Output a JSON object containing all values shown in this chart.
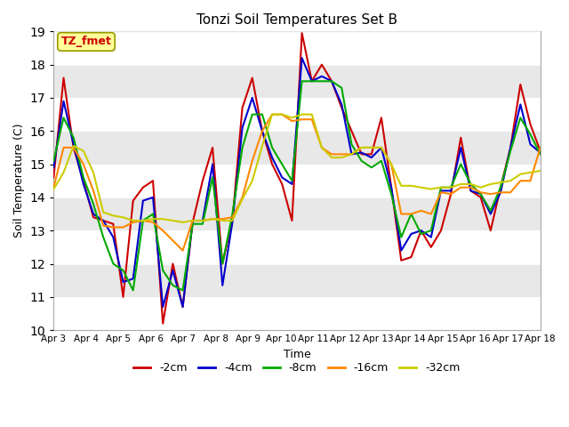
{
  "title": "Tonzi Soil Temperatures Set B",
  "xlabel": "Time",
  "ylabel": "Soil Temperature (C)",
  "ylim": [
    10.0,
    19.0
  ],
  "yticks": [
    10.0,
    11.0,
    12.0,
    13.0,
    14.0,
    15.0,
    16.0,
    17.0,
    18.0,
    19.0
  ],
  "xtick_labels": [
    "Apr 3",
    "Apr 4",
    "Apr 5",
    "Apr 6",
    "Apr 7",
    "Apr 8",
    "Apr 9",
    "Apr 10",
    "Apr 11",
    "Apr 12",
    "Apr 13",
    "Apr 14",
    "Apr 15",
    "Apr 16",
    "Apr 17",
    "Apr 18"
  ],
  "annotation_text": "TZ_fmet",
  "annotation_color": "#cc0000",
  "annotation_bg": "#ffff99",
  "fig_bg": "#ffffff",
  "plot_bg_colors": [
    "#ffffff",
    "#e8e8e8"
  ],
  "lines": {
    "-2cm": {
      "color": "#cc0000",
      "lw": 1.5
    },
    "-4cm": {
      "color": "#0000cc",
      "lw": 1.5
    },
    "-8cm": {
      "color": "#00aa00",
      "lw": 1.5
    },
    "-16cm": {
      "color": "#ff8800",
      "lw": 1.5
    },
    "-32cm": {
      "color": "#cccc00",
      "lw": 1.5
    }
  },
  "data": {
    "-2cm": [
      14.6,
      17.6,
      15.5,
      14.5,
      13.4,
      13.3,
      13.2,
      11.0,
      13.9,
      14.3,
      14.5,
      10.2,
      12.0,
      10.7,
      13.25,
      14.5,
      15.5,
      12.0,
      13.3,
      16.7,
      17.6,
      16.0,
      15.0,
      14.4,
      13.3,
      18.95,
      17.5,
      18.0,
      17.5,
      16.7,
      16.0,
      15.3,
      15.3,
      16.4,
      14.3,
      12.1,
      12.2,
      13.0,
      12.5,
      13.0,
      14.1,
      15.8,
      14.2,
      14.0,
      13.0,
      14.3,
      15.5,
      17.4,
      16.2,
      15.4
    ],
    "-4cm": [
      14.9,
      16.9,
      15.6,
      14.4,
      13.5,
      13.3,
      12.8,
      11.45,
      11.55,
      13.9,
      14.0,
      10.7,
      11.8,
      10.7,
      13.3,
      13.3,
      15.0,
      11.35,
      13.25,
      16.1,
      17.0,
      16.0,
      15.2,
      14.6,
      14.4,
      18.2,
      17.5,
      17.65,
      17.5,
      16.8,
      15.3,
      15.35,
      15.2,
      15.5,
      14.3,
      12.4,
      12.9,
      13.0,
      12.8,
      14.2,
      14.2,
      15.5,
      14.2,
      14.1,
      13.5,
      14.15,
      15.5,
      16.8,
      15.6,
      15.35
    ],
    "-8cm": [
      15.1,
      16.4,
      15.8,
      14.6,
      13.8,
      12.8,
      12.0,
      11.8,
      11.2,
      13.3,
      13.5,
      11.8,
      11.35,
      11.2,
      13.2,
      13.2,
      14.6,
      12.0,
      13.5,
      15.5,
      16.5,
      16.5,
      15.5,
      15.0,
      14.5,
      17.5,
      17.5,
      17.5,
      17.5,
      17.3,
      15.6,
      15.1,
      14.9,
      15.1,
      14.1,
      12.8,
      13.5,
      12.9,
      13.0,
      14.3,
      14.3,
      15.0,
      14.4,
      14.1,
      13.6,
      14.3,
      15.4,
      16.4,
      15.9,
      15.3
    ],
    "-16cm": [
      14.3,
      15.5,
      15.5,
      15.0,
      14.2,
      13.15,
      13.1,
      13.1,
      13.25,
      13.3,
      13.25,
      13.0,
      12.7,
      12.4,
      13.3,
      13.3,
      13.35,
      13.35,
      13.4,
      14.0,
      15.1,
      16.0,
      16.5,
      16.5,
      16.3,
      16.35,
      16.35,
      15.5,
      15.3,
      15.3,
      15.3,
      15.5,
      15.5,
      15.5,
      15.0,
      13.5,
      13.5,
      13.6,
      13.5,
      14.15,
      14.1,
      14.3,
      14.3,
      14.15,
      14.1,
      14.15,
      14.15,
      14.5,
      14.5,
      15.5
    ],
    "-32cm": [
      14.25,
      14.75,
      15.55,
      15.4,
      14.75,
      13.55,
      13.45,
      13.4,
      13.3,
      13.3,
      13.35,
      13.35,
      13.3,
      13.25,
      13.3,
      13.3,
      13.35,
      13.3,
      13.3,
      13.95,
      14.5,
      15.55,
      16.5,
      16.5,
      16.4,
      16.5,
      16.5,
      15.5,
      15.2,
      15.2,
      15.3,
      15.5,
      15.5,
      15.5,
      15.0,
      14.35,
      14.35,
      14.3,
      14.25,
      14.3,
      14.3,
      14.4,
      14.4,
      14.3,
      14.4,
      14.45,
      14.5,
      14.7,
      14.75,
      14.8
    ]
  }
}
